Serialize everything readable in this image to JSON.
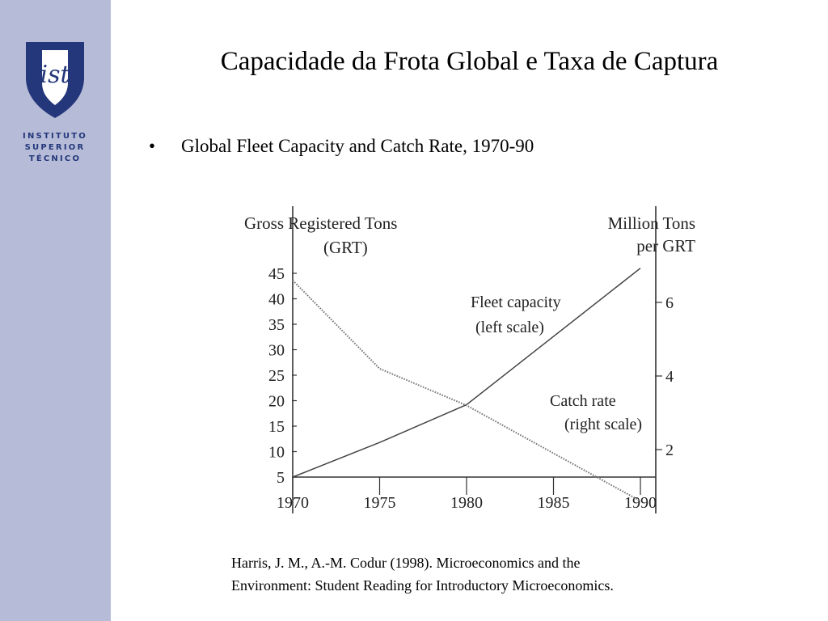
{
  "sidebar": {
    "logo_text": [
      "INSTITUTO",
      "SUPERIOR",
      "TÉCNICO"
    ],
    "color": "#b6bcd8",
    "logo_color": "#24377a"
  },
  "slide": {
    "title": "Capacidade da Frota Global e Taxa de Captura",
    "bullet": "Global Fleet Capacity and Catch Rate, 1970-90"
  },
  "chart_data": {
    "type": "line",
    "left_axis_title": [
      "Gross Registered Tons",
      "(GRT)"
    ],
    "right_axis_title": [
      "Million Tons",
      "per GRT"
    ],
    "x_ticks": [
      "1970",
      "1975",
      "1980",
      "1985",
      "1990"
    ],
    "left_ticks": [
      "5",
      "10",
      "15",
      "20",
      "25",
      "30",
      "35",
      "40",
      "45"
    ],
    "right_ticks": [
      "2",
      "4",
      "6"
    ],
    "ylim_left": [
      5,
      45
    ],
    "ylim_right": [
      0.6,
      7
    ],
    "series": [
      {
        "name": "Fleet capacity",
        "annotation": [
          "Fleet capacity",
          "(left scale)"
        ],
        "axis": "left",
        "style": "solid",
        "x": [
          1970,
          1975,
          1980,
          1990
        ],
        "y": [
          5,
          11.8,
          19.2,
          46
        ]
      },
      {
        "name": "Catch rate",
        "annotation": [
          "Catch rate",
          "(right scale)"
        ],
        "axis": "right",
        "style": "dotted",
        "x": [
          1970,
          1975,
          1980,
          1990
        ],
        "y": [
          6.6,
          4.2,
          3.2,
          0.6
        ]
      }
    ]
  },
  "citation": [
    "Harris, J. M., A.-M. Codur (1998). Microeconomics and the",
    "Environment: Student Reading for Introductory Microeconomics."
  ]
}
